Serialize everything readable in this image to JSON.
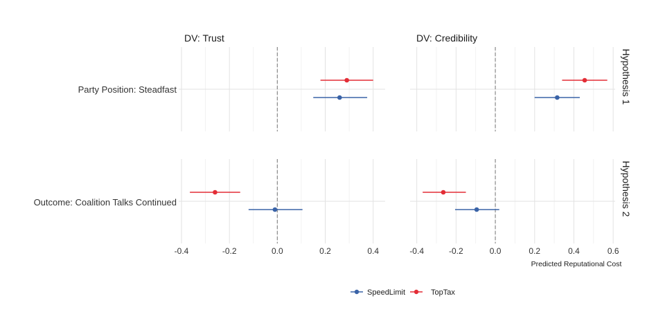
{
  "chart_data": {
    "type": "scatter",
    "subtype": "coefficient-plot-with-confidence-intervals",
    "panels": [
      {
        "id": "trust",
        "title": "DV: Trust",
        "xlim": [
          -0.4,
          0.45
        ],
        "x_ticks": [
          -0.4,
          -0.2,
          0.0,
          0.2,
          0.4
        ],
        "x_tick_labels": [
          "-0.4",
          "-0.2",
          "0.0",
          "0.2",
          "0.4"
        ]
      },
      {
        "id": "credibility",
        "title": "DV: Credibility",
        "xlim": [
          -0.42,
          0.61
        ],
        "x_ticks": [
          -0.4,
          -0.2,
          0.0,
          0.2,
          0.4,
          0.6
        ],
        "x_tick_labels": [
          "-0.4",
          "-0.2",
          "0.0",
          "0.2",
          "0.4",
          "0.6"
        ]
      }
    ],
    "rows": [
      {
        "id": "h1",
        "strip": "Hypothesis 1",
        "label": "Party Position: Steadfast"
      },
      {
        "id": "h2",
        "strip": "Hypothesis 2",
        "label": "Outcome: Coalition Talks Continued"
      }
    ],
    "xlabel": "Predicted Reputational Cost",
    "reference_line": 0,
    "grid": true,
    "legend_position": "bottom",
    "series": [
      {
        "name": "SpeedLimit",
        "color": "#3a63a7",
        "points": [
          {
            "panel": "trust",
            "row": "h1",
            "estimate": 0.26,
            "lower": 0.15,
            "upper": 0.375
          },
          {
            "panel": "credibility",
            "row": "h1",
            "estimate": 0.315,
            "lower": 0.2,
            "upper": 0.43
          },
          {
            "panel": "trust",
            "row": "h2",
            "estimate": -0.01,
            "lower": -0.12,
            "upper": 0.105
          },
          {
            "panel": "credibility",
            "row": "h2",
            "estimate": -0.095,
            "lower": -0.205,
            "upper": 0.02
          }
        ]
      },
      {
        "name": "TopTax",
        "color": "#e32d36",
        "points": [
          {
            "panel": "trust",
            "row": "h1",
            "estimate": 0.29,
            "lower": 0.18,
            "upper": 0.4
          },
          {
            "panel": "credibility",
            "row": "h1",
            "estimate": 0.455,
            "lower": 0.34,
            "upper": 0.57
          },
          {
            "panel": "trust",
            "row": "h2",
            "estimate": -0.26,
            "lower": -0.365,
            "upper": -0.155
          },
          {
            "panel": "credibility",
            "row": "h2",
            "estimate": -0.265,
            "lower": -0.37,
            "upper": -0.15
          }
        ]
      }
    ]
  }
}
